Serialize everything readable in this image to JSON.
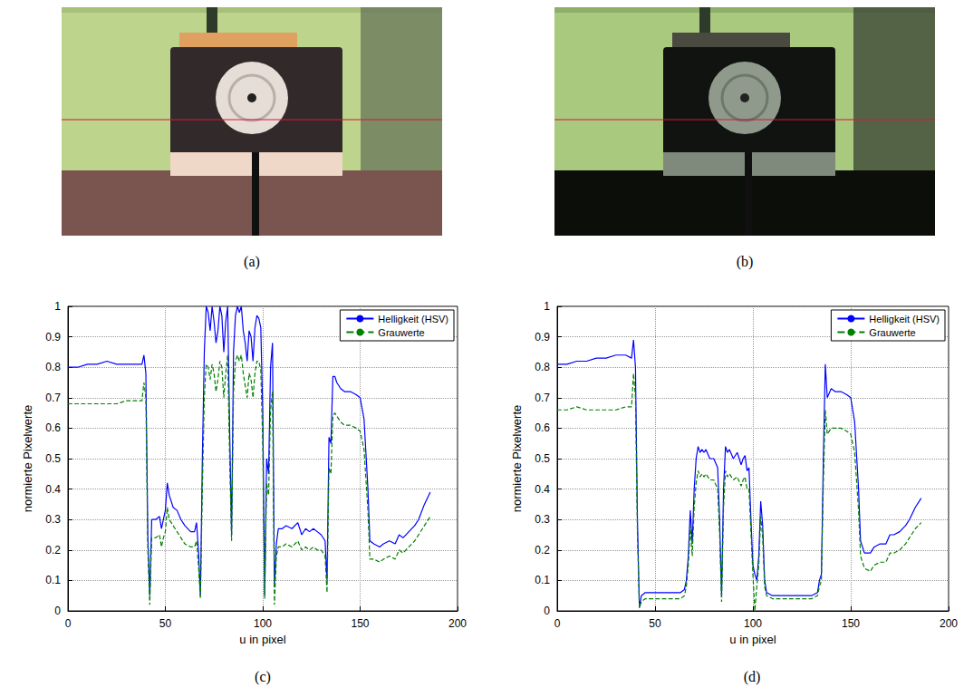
{
  "images": [
    {
      "title": "(a)"
    },
    {
      "title": "(b)"
    }
  ],
  "chart_data": [
    {
      "type": "line",
      "title": "(c)",
      "x_label": "u in pixel",
      "y_label": "normierte Pixelwerte",
      "xlim": [
        0,
        200
      ],
      "xticks": [
        0,
        50,
        100,
        150,
        200
      ],
      "ylim": [
        0,
        1
      ],
      "yticks": [
        0,
        0.1,
        0.2,
        0.3,
        0.4,
        0.5,
        0.6,
        0.7,
        0.8,
        0.9,
        1
      ],
      "grid": true,
      "legend": "upper right",
      "x": [
        0,
        5,
        10,
        15,
        20,
        25,
        30,
        35,
        38,
        39,
        40,
        41,
        42,
        43,
        45,
        47,
        48,
        49,
        50,
        51,
        52,
        54,
        56,
        58,
        60,
        63,
        65,
        66,
        67,
        68,
        69,
        70,
        71,
        72,
        73,
        74,
        75,
        76,
        77,
        78,
        79,
        80,
        81,
        82,
        83,
        84,
        85,
        86,
        87,
        88,
        89,
        90,
        91,
        92,
        93,
        94,
        95,
        96,
        97,
        98,
        99,
        100,
        101,
        102,
        103,
        104,
        105,
        106,
        107,
        108,
        110,
        112,
        115,
        118,
        120,
        122,
        124,
        126,
        128,
        130,
        132,
        133,
        134,
        135,
        136,
        137,
        138,
        140,
        142,
        145,
        148,
        150,
        152,
        154,
        155,
        157,
        160,
        162,
        165,
        168,
        170,
        172,
        175,
        178,
        180,
        183,
        186
      ],
      "series": [
        {
          "name": "Helligkeit (HSV)",
          "color": "#0000ff",
          "line_style": "solid",
          "values": [
            0.8,
            0.8,
            0.81,
            0.81,
            0.82,
            0.81,
            0.81,
            0.81,
            0.81,
            0.84,
            0.78,
            0.25,
            0.05,
            0.3,
            0.3,
            0.31,
            0.27,
            0.3,
            0.33,
            0.42,
            0.38,
            0.34,
            0.33,
            0.3,
            0.28,
            0.26,
            0.26,
            0.29,
            0.2,
            0.05,
            0.5,
            0.85,
            1.0,
            0.98,
            0.92,
            1.0,
            0.95,
            0.88,
            0.92,
            1.0,
            0.97,
            0.85,
            0.95,
            1.0,
            0.6,
            0.25,
            0.85,
            0.97,
            1.0,
            0.98,
            1.0,
            0.92,
            0.88,
            0.82,
            0.92,
            0.9,
            0.82,
            0.93,
            0.97,
            0.96,
            0.93,
            0.65,
            0.05,
            0.5,
            0.45,
            0.8,
            0.88,
            0.08,
            0.22,
            0.27,
            0.27,
            0.28,
            0.27,
            0.29,
            0.25,
            0.27,
            0.26,
            0.27,
            0.26,
            0.25,
            0.23,
            0.1,
            0.57,
            0.55,
            0.77,
            0.77,
            0.75,
            0.73,
            0.72,
            0.72,
            0.71,
            0.7,
            0.63,
            0.4,
            0.23,
            0.22,
            0.21,
            0.22,
            0.23,
            0.22,
            0.25,
            0.24,
            0.26,
            0.28,
            0.3,
            0.35,
            0.39
          ]
        },
        {
          "name": "Grauwerte",
          "color": "#008000",
          "line_style": "dashed",
          "values": [
            0.68,
            0.68,
            0.68,
            0.68,
            0.68,
            0.68,
            0.69,
            0.69,
            0.69,
            0.75,
            0.7,
            0.2,
            0.02,
            0.24,
            0.24,
            0.25,
            0.21,
            0.24,
            0.26,
            0.34,
            0.3,
            0.28,
            0.26,
            0.24,
            0.22,
            0.21,
            0.21,
            0.23,
            0.15,
            0.04,
            0.4,
            0.7,
            0.81,
            0.8,
            0.76,
            0.81,
            0.78,
            0.72,
            0.76,
            0.82,
            0.8,
            0.7,
            0.78,
            0.84,
            0.5,
            0.23,
            0.72,
            0.82,
            0.84,
            0.82,
            0.84,
            0.78,
            0.74,
            0.7,
            0.78,
            0.76,
            0.7,
            0.78,
            0.82,
            0.82,
            0.79,
            0.55,
            0.04,
            0.42,
            0.38,
            0.66,
            0.72,
            0.02,
            0.18,
            0.21,
            0.21,
            0.22,
            0.21,
            0.23,
            0.2,
            0.21,
            0.2,
            0.21,
            0.2,
            0.2,
            0.18,
            0.06,
            0.47,
            0.45,
            0.64,
            0.65,
            0.64,
            0.62,
            0.61,
            0.61,
            0.6,
            0.59,
            0.53,
            0.33,
            0.17,
            0.17,
            0.16,
            0.17,
            0.18,
            0.17,
            0.2,
            0.19,
            0.21,
            0.23,
            0.25,
            0.28,
            0.31
          ]
        }
      ]
    },
    {
      "type": "line",
      "title": "(d)",
      "x_label": "u in pixel",
      "y_label": "normierte Pixelwerte",
      "xlim": [
        0,
        200
      ],
      "xticks": [
        0,
        50,
        100,
        150,
        200
      ],
      "ylim": [
        0,
        1
      ],
      "yticks": [
        0,
        0.1,
        0.2,
        0.3,
        0.4,
        0.5,
        0.6,
        0.7,
        0.8,
        0.9,
        1
      ],
      "grid": true,
      "legend": "upper right",
      "x": [
        0,
        5,
        10,
        15,
        20,
        25,
        30,
        35,
        38,
        39,
        40,
        41,
        42,
        43,
        45,
        50,
        55,
        60,
        63,
        65,
        66,
        67,
        68,
        69,
        70,
        71,
        72,
        73,
        74,
        75,
        76,
        78,
        80,
        82,
        83,
        84,
        85,
        86,
        87,
        88,
        90,
        92,
        94,
        95,
        96,
        97,
        98,
        99,
        100,
        101,
        102,
        103,
        104,
        105,
        106,
        107,
        110,
        115,
        120,
        125,
        130,
        133,
        134,
        135,
        136,
        137,
        138,
        140,
        142,
        145,
        148,
        150,
        152,
        154,
        155,
        157,
        160,
        162,
        165,
        168,
        170,
        172,
        175,
        178,
        180,
        183,
        186
      ],
      "series": [
        {
          "name": "Helligkeit (HSV)",
          "color": "#0000ff",
          "line_style": "solid",
          "values": [
            0.81,
            0.81,
            0.82,
            0.82,
            0.83,
            0.83,
            0.84,
            0.84,
            0.83,
            0.89,
            0.8,
            0.3,
            0.01,
            0.05,
            0.06,
            0.06,
            0.06,
            0.06,
            0.06,
            0.07,
            0.1,
            0.18,
            0.33,
            0.22,
            0.4,
            0.5,
            0.54,
            0.52,
            0.53,
            0.52,
            0.53,
            0.5,
            0.5,
            0.47,
            0.3,
            0.05,
            0.4,
            0.54,
            0.52,
            0.53,
            0.5,
            0.52,
            0.48,
            0.5,
            0.51,
            0.46,
            0.47,
            0.3,
            0.15,
            0.12,
            0.1,
            0.18,
            0.36,
            0.28,
            0.1,
            0.06,
            0.05,
            0.05,
            0.05,
            0.05,
            0.05,
            0.06,
            0.1,
            0.12,
            0.5,
            0.81,
            0.7,
            0.73,
            0.72,
            0.72,
            0.71,
            0.7,
            0.62,
            0.4,
            0.23,
            0.19,
            0.19,
            0.21,
            0.22,
            0.22,
            0.25,
            0.25,
            0.26,
            0.28,
            0.3,
            0.34,
            0.37
          ]
        },
        {
          "name": "Grauwerte",
          "color": "#008000",
          "line_style": "dashed",
          "values": [
            0.66,
            0.66,
            0.67,
            0.66,
            0.66,
            0.66,
            0.66,
            0.67,
            0.67,
            0.78,
            0.7,
            0.25,
            0.01,
            0.03,
            0.04,
            0.04,
            0.04,
            0.04,
            0.04,
            0.05,
            0.08,
            0.15,
            0.28,
            0.18,
            0.34,
            0.42,
            0.46,
            0.44,
            0.45,
            0.44,
            0.45,
            0.43,
            0.43,
            0.4,
            0.25,
            0.03,
            0.34,
            0.46,
            0.44,
            0.45,
            0.43,
            0.44,
            0.41,
            0.43,
            0.44,
            0.4,
            0.4,
            0.26,
            0.12,
            0.0,
            0.08,
            0.15,
            0.31,
            0.24,
            0.08,
            0.05,
            0.04,
            0.04,
            0.04,
            0.04,
            0.04,
            0.05,
            0.08,
            0.1,
            0.42,
            0.66,
            0.58,
            0.6,
            0.6,
            0.6,
            0.59,
            0.58,
            0.52,
            0.33,
            0.18,
            0.14,
            0.13,
            0.15,
            0.16,
            0.16,
            0.19,
            0.19,
            0.2,
            0.22,
            0.24,
            0.27,
            0.29
          ]
        }
      ]
    }
  ]
}
